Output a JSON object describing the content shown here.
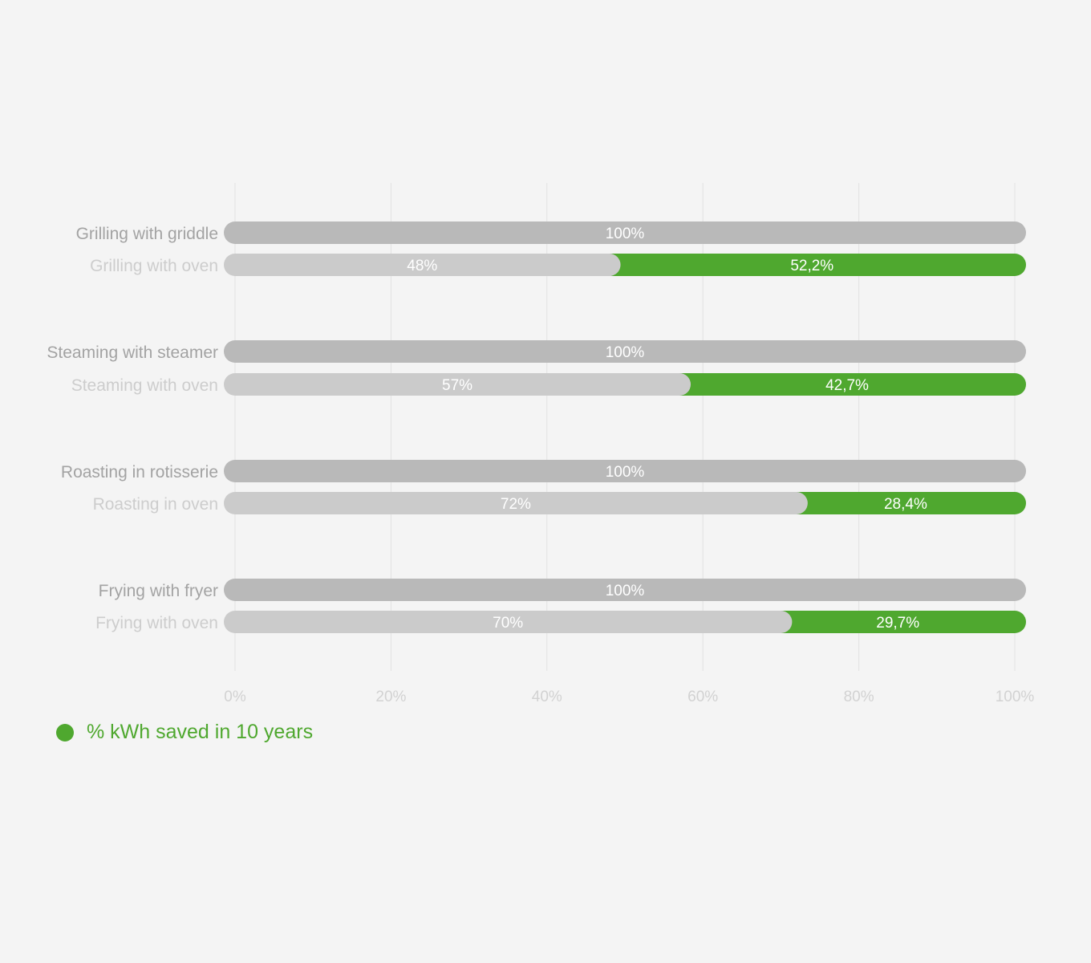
{
  "chart_data": {
    "type": "bar",
    "orientation": "horizontal",
    "stacked": true,
    "xlim": [
      0,
      100
    ],
    "x_ticks": [
      "0%",
      "20%",
      "40%",
      "60%",
      "80%",
      "100%"
    ],
    "grid": true,
    "groups": [
      {
        "rows": [
          {
            "label": "Grilling with griddle",
            "base": 100,
            "base_label": "100%"
          },
          {
            "label": "Grilling with oven",
            "base": 48,
            "base_label": "48%",
            "saved": 52.2,
            "saved_label": "52,2%"
          }
        ]
      },
      {
        "rows": [
          {
            "label": "Steaming with steamer",
            "base": 100,
            "base_label": "100%"
          },
          {
            "label": "Steaming with oven",
            "base": 57,
            "base_label": "57%",
            "saved": 42.7,
            "saved_label": "42,7%"
          }
        ]
      },
      {
        "rows": [
          {
            "label": "Roasting in rotisserie",
            "base": 100,
            "base_label": "100%"
          },
          {
            "label": "Roasting in oven",
            "base": 72,
            "base_label": "72%",
            "saved": 28.4,
            "saved_label": "28,4%"
          }
        ]
      },
      {
        "rows": [
          {
            "label": "Frying with fryer",
            "base": 100,
            "base_label": "100%"
          },
          {
            "label": "Frying with oven",
            "base": 70,
            "base_label": "70%",
            "saved": 29.7,
            "saved_label": "29,7%"
          }
        ]
      }
    ],
    "legend": {
      "label": "% kWh saved in 10 years",
      "position": "bottom-left"
    },
    "colors": {
      "saved": "#4fa82f",
      "reference": "#b9b9b9",
      "oven": "#cbcbcb",
      "grid": "#e2e2e2"
    }
  }
}
